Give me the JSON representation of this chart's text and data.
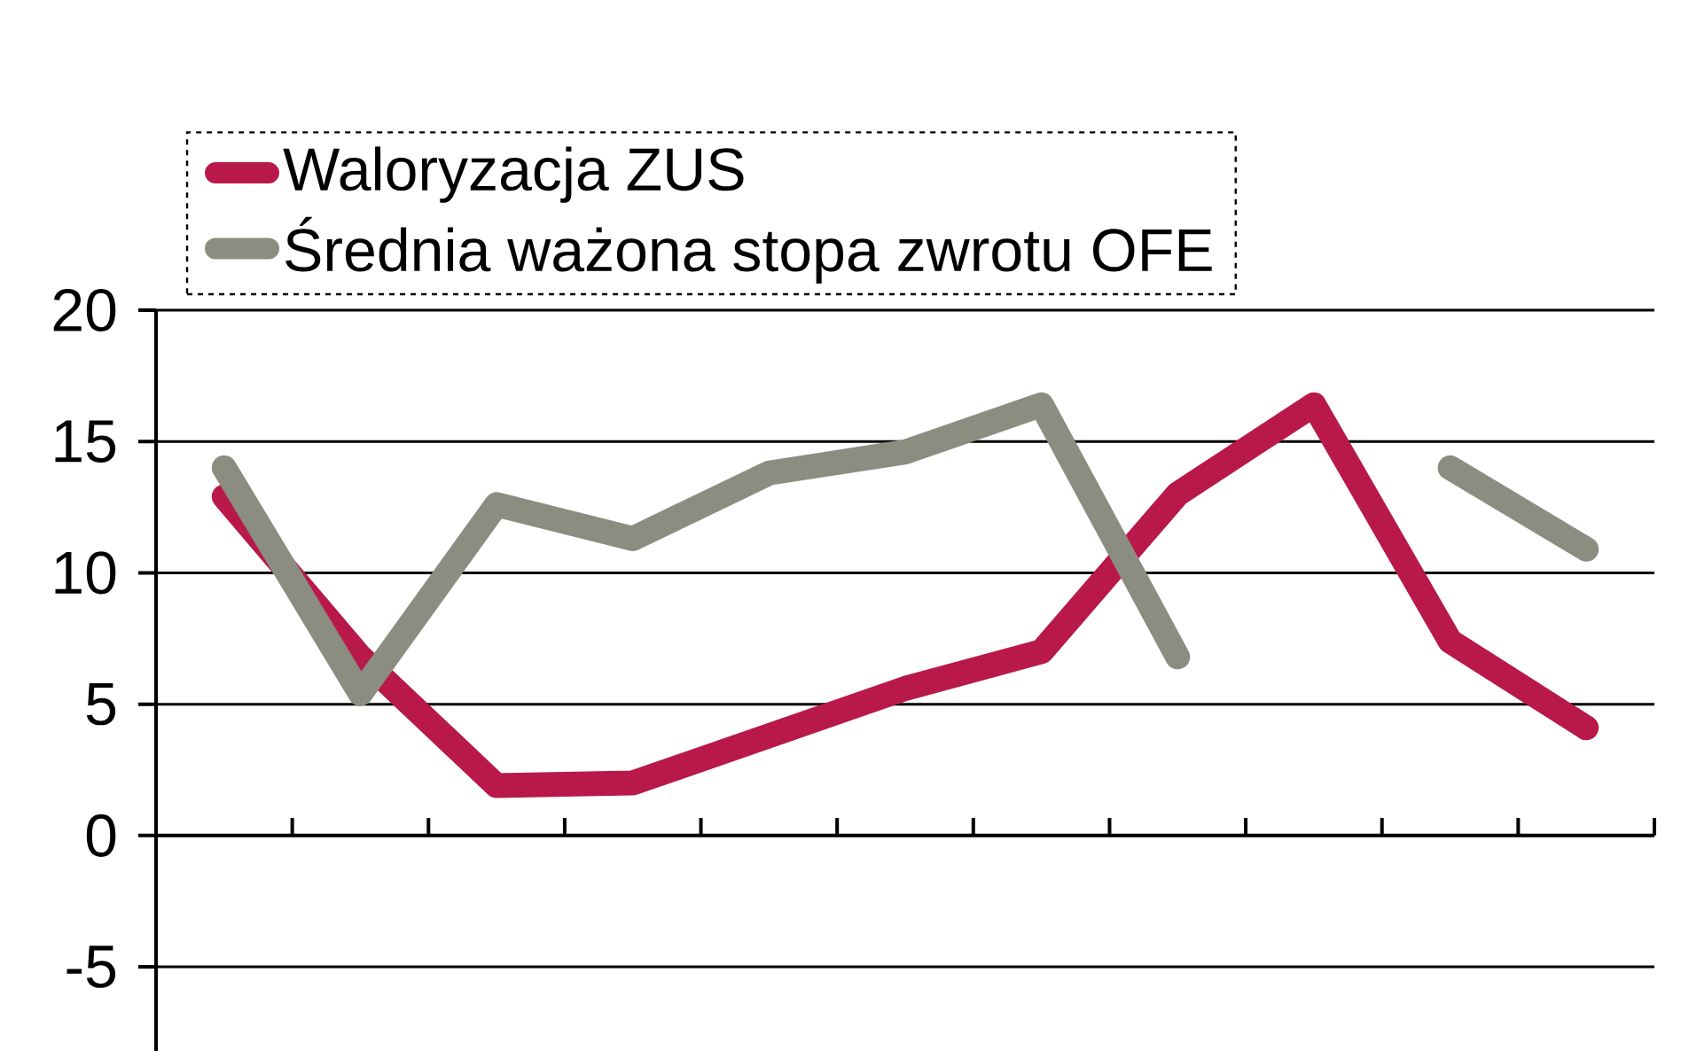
{
  "chart_data": {
    "type": "line",
    "categories": [
      null,
      null,
      null,
      null,
      null,
      null,
      null,
      null,
      null,
      null,
      null
    ],
    "series": [
      {
        "name": "Waloryzacja ZUS",
        "color": "#b8194a",
        "values": [
          12.9,
          6.8,
          1.9,
          2.0,
          3.8,
          5.6,
          7.0,
          13.0,
          16.4,
          7.4,
          4.1
        ]
      },
      {
        "name": "Średnia ważona stopa zwrotu OFE",
        "color": "#8b8d80",
        "values": [
          14.0,
          5.4,
          12.6,
          11.3,
          13.8,
          14.6,
          16.4,
          6.8,
          null,
          14.0,
          10.9
        ]
      }
    ],
    "ylim": [
      -8.2,
      20
    ],
    "yticks": [
      -5,
      0,
      5,
      10,
      15,
      20
    ],
    "grid": "y",
    "legend": "top",
    "tick_labels": "y",
    "line_style": "solid"
  }
}
